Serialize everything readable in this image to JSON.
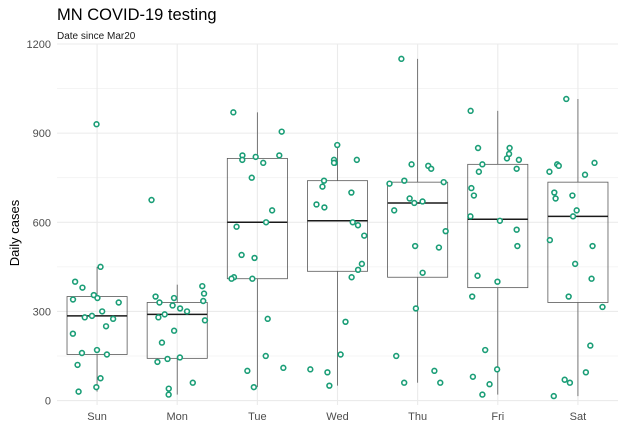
{
  "chart_data": {
    "type": "box+jitter",
    "title": "MN COVID-19 testing",
    "subtitle": "Date since Mar20",
    "xlabel": "",
    "ylabel": "Daily cases",
    "categories": [
      "Sun",
      "Mon",
      "Tue",
      "Wed",
      "Thu",
      "Fri",
      "Sat"
    ],
    "ylim": [
      -15,
      1200
    ],
    "yticks": [
      0,
      300,
      600,
      900,
      1200
    ],
    "grid": true,
    "box_color": "#595959",
    "point_color": "#1b9e77",
    "boxes": [
      {
        "category": "Sun",
        "lower_whisker": 30,
        "q1": 155,
        "median": 285,
        "q3": 350,
        "upper_whisker": 450
      },
      {
        "category": "Mon",
        "lower_whisker": 20,
        "q1": 142,
        "median": 290,
        "q3": 330,
        "upper_whisker": 390
      },
      {
        "category": "Tue",
        "lower_whisker": 45,
        "q1": 410,
        "median": 600,
        "q3": 815,
        "upper_whisker": 970
      },
      {
        "category": "Wed",
        "lower_whisker": 50,
        "q1": 435,
        "median": 605,
        "q3": 740,
        "upper_whisker": 860
      },
      {
        "category": "Thu",
        "lower_whisker": 60,
        "q1": 415,
        "median": 665,
        "q3": 735,
        "upper_whisker": 1150
      },
      {
        "category": "Fri",
        "lower_whisker": 20,
        "q1": 380,
        "median": 610,
        "q3": 795,
        "upper_whisker": 975
      },
      {
        "category": "Sat",
        "lower_whisker": 15,
        "q1": 330,
        "median": 620,
        "q3": 735,
        "upper_whisker": 1015
      }
    ],
    "points": [
      {
        "category": "Sun",
        "values": [
          930,
          450,
          400,
          380,
          355,
          345,
          340,
          330,
          300,
          285,
          280,
          275,
          250,
          225,
          170,
          160,
          155,
          120,
          75,
          45,
          30
        ]
      },
      {
        "category": "Mon",
        "values": [
          675,
          385,
          360,
          350,
          345,
          335,
          330,
          320,
          310,
          300,
          290,
          280,
          270,
          235,
          195,
          145,
          140,
          130,
          60,
          40,
          20
        ]
      },
      {
        "category": "Tue",
        "values": [
          970,
          905,
          825,
          825,
          820,
          810,
          800,
          750,
          640,
          600,
          585,
          490,
          480,
          415,
          410,
          410,
          275,
          150,
          110,
          100,
          45
        ]
      },
      {
        "category": "Wed",
        "values": [
          860,
          810,
          810,
          800,
          800,
          740,
          720,
          700,
          660,
          650,
          600,
          590,
          555,
          460,
          440,
          415,
          265,
          155,
          105,
          95,
          50
        ]
      },
      {
        "category": "Thu",
        "values": [
          1150,
          795,
          790,
          780,
          740,
          735,
          730,
          680,
          670,
          665,
          640,
          570,
          520,
          515,
          430,
          310,
          150,
          100,
          60,
          60
        ]
      },
      {
        "category": "Fri",
        "values": [
          975,
          850,
          850,
          830,
          815,
          810,
          795,
          780,
          770,
          715,
          690,
          620,
          605,
          575,
          520,
          420,
          400,
          350,
          170,
          105,
          80,
          55,
          20
        ]
      },
      {
        "category": "Sat",
        "values": [
          1015,
          800,
          795,
          790,
          770,
          760,
          700,
          690,
          680,
          640,
          620,
          540,
          520,
          460,
          410,
          350,
          315,
          185,
          95,
          70,
          60,
          15
        ]
      }
    ]
  }
}
